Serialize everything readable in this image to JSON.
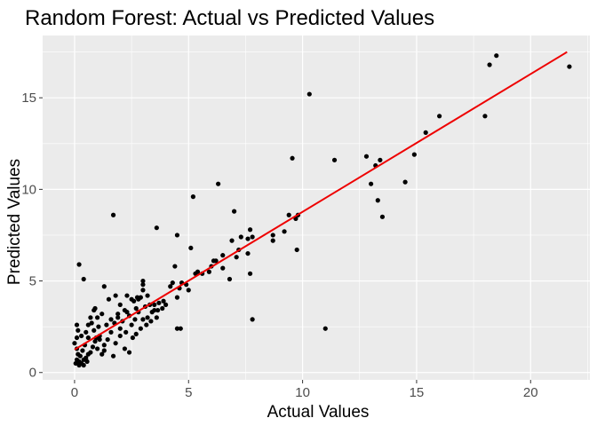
{
  "chart_data": {
    "type": "scatter",
    "title": "Random Forest: Actual vs Predicted Values",
    "xlabel": "Actual Values",
    "ylabel": "Predicted Values",
    "xlim": [
      -1.4,
      22.6
    ],
    "ylim": [
      -0.4,
      18.4
    ],
    "x_ticks": [
      0,
      5,
      10,
      15,
      20
    ],
    "x_tick_labels": [
      "0",
      "5",
      "10",
      "15",
      "20"
    ],
    "y_ticks": [
      0,
      5,
      10,
      15
    ],
    "y_tick_labels": [
      "0",
      "5",
      "10",
      "15"
    ],
    "grid": true,
    "colors": {
      "panel": "#ebebeb",
      "grid_major": "#ffffff",
      "points": "#000000",
      "fit_line": "#ee0000"
    },
    "fit_line": {
      "x": [
        0,
        21.6
      ],
      "y": [
        1.25,
        17.5
      ]
    },
    "points": [
      [
        0.05,
        0.5
      ],
      [
        0.1,
        0.7
      ],
      [
        0.15,
        1.0
      ],
      [
        0.2,
        0.6
      ],
      [
        0.1,
        1.3
      ],
      [
        0.0,
        1.6
      ],
      [
        0.1,
        1.9
      ],
      [
        0.15,
        2.3
      ],
      [
        0.1,
        2.6
      ],
      [
        0.2,
        0.4
      ],
      [
        0.25,
        0.9
      ],
      [
        0.3,
        0.5
      ],
      [
        0.35,
        1.2
      ],
      [
        0.4,
        0.4
      ],
      [
        0.5,
        0.8
      ],
      [
        0.6,
        1.0
      ],
      [
        0.7,
        1.1
      ],
      [
        0.55,
        0.6
      ],
      [
        0.3,
        2.0
      ],
      [
        0.45,
        1.5
      ],
      [
        0.5,
        2.2
      ],
      [
        0.6,
        2.6
      ],
      [
        0.7,
        3.0
      ],
      [
        0.8,
        1.4
      ],
      [
        0.9,
        1.7
      ],
      [
        1.0,
        1.3
      ],
      [
        1.1,
        2.0
      ],
      [
        0.85,
        3.4
      ],
      [
        0.9,
        3.5
      ],
      [
        0.85,
        2.3
      ],
      [
        0.95,
        1.9
      ],
      [
        1.05,
        2.5
      ],
      [
        1.2,
        1.0
      ],
      [
        1.3,
        1.5
      ],
      [
        1.4,
        2.6
      ],
      [
        1.45,
        1.8
      ],
      [
        1.5,
        4.0
      ],
      [
        1.6,
        2.2
      ],
      [
        1.7,
        0.9
      ],
      [
        1.75,
        2.7
      ],
      [
        1.8,
        1.6
      ],
      [
        1.9,
        3.0
      ],
      [
        2.0,
        2.4
      ],
      [
        2.0,
        2.0
      ],
      [
        2.1,
        2.8
      ],
      [
        2.2,
        1.3
      ],
      [
        2.25,
        2.2
      ],
      [
        2.3,
        3.3
      ],
      [
        2.4,
        1.1
      ],
      [
        2.5,
        2.6
      ],
      [
        2.55,
        1.9
      ],
      [
        2.6,
        3.9
      ],
      [
        2.65,
        2.9
      ],
      [
        2.7,
        2.1
      ],
      [
        2.75,
        4.1
      ],
      [
        2.8,
        3.3
      ],
      [
        2.9,
        2.4
      ],
      [
        2.9,
        4.1
      ],
      [
        3.0,
        2.9
      ],
      [
        3.0,
        4.5
      ],
      [
        3.1,
        3.6
      ],
      [
        3.15,
        2.6
      ],
      [
        3.2,
        3.0
      ],
      [
        3.3,
        3.7
      ],
      [
        3.35,
        2.8
      ],
      [
        3.4,
        3.3
      ],
      [
        3.5,
        3.7
      ],
      [
        3.6,
        3.0
      ],
      [
        3.65,
        3.4
      ],
      [
        3.7,
        3.8
      ],
      [
        3.85,
        3.5
      ],
      [
        3.0,
        5.0
      ],
      [
        1.3,
        4.7
      ],
      [
        1.8,
        4.2
      ],
      [
        2.3,
        4.2
      ],
      [
        2.5,
        4.0
      ],
      [
        3.0,
        4.8
      ],
      [
        3.2,
        4.2
      ],
      [
        3.5,
        3.4
      ],
      [
        3.6,
        7.9
      ],
      [
        1.9,
        3.2
      ],
      [
        2.2,
        3.4
      ],
      [
        2.4,
        3.1
      ],
      [
        2.0,
        3.7
      ],
      [
        2.7,
        3.5
      ],
      [
        2.8,
        4.0
      ],
      [
        1.2,
        3.2
      ],
      [
        1.6,
        2.9
      ],
      [
        1.0,
        3.0
      ],
      [
        0.75,
        2.7
      ],
      [
        4.0,
        3.7
      ],
      [
        4.3,
        4.9
      ],
      [
        4.5,
        4.1
      ],
      [
        4.6,
        4.6
      ],
      [
        4.7,
        4.9
      ],
      [
        4.5,
        2.4
      ],
      [
        4.65,
        2.4
      ],
      [
        5.0,
        4.5
      ],
      [
        5.1,
        6.8
      ],
      [
        5.3,
        5.4
      ],
      [
        5.6,
        5.4
      ],
      [
        5.9,
        5.5
      ],
      [
        6.0,
        5.8
      ],
      [
        6.1,
        6.1
      ],
      [
        6.3,
        10.3
      ],
      [
        6.5,
        6.4
      ],
      [
        6.5,
        5.7
      ],
      [
        6.8,
        5.1
      ],
      [
        6.9,
        7.2
      ],
      [
        7.0,
        8.8
      ],
      [
        7.1,
        6.3
      ],
      [
        7.3,
        7.4
      ],
      [
        7.6,
        7.3
      ],
      [
        7.6,
        6.5
      ],
      [
        7.7,
        7.8
      ],
      [
        7.8,
        7.4
      ],
      [
        7.7,
        5.4
      ],
      [
        7.8,
        2.9
      ],
      [
        7.2,
        6.7
      ],
      [
        5.2,
        9.6
      ],
      [
        4.5,
        7.5
      ],
      [
        6.2,
        6.1
      ],
      [
        8.7,
        7.2
      ],
      [
        8.7,
        7.5
      ],
      [
        9.2,
        7.7
      ],
      [
        9.4,
        8.6
      ],
      [
        9.55,
        11.7
      ],
      [
        9.7,
        8.4
      ],
      [
        9.75,
        6.7
      ],
      [
        9.8,
        8.6
      ],
      [
        10.3,
        15.2
      ],
      [
        11.0,
        2.4
      ],
      [
        11.4,
        11.6
      ],
      [
        12.8,
        11.8
      ],
      [
        13.0,
        10.3
      ],
      [
        13.2,
        11.3
      ],
      [
        13.3,
        9.4
      ],
      [
        13.4,
        11.6
      ],
      [
        13.5,
        8.5
      ],
      [
        14.5,
        10.4
      ],
      [
        14.9,
        11.9
      ],
      [
        15.4,
        13.1
      ],
      [
        16.0,
        14.0
      ],
      [
        18.0,
        14.0
      ],
      [
        18.2,
        16.8
      ],
      [
        18.5,
        17.3
      ],
      [
        21.7,
        16.7
      ],
      [
        0.4,
        5.1
      ],
      [
        0.2,
        5.9
      ],
      [
        1.7,
        8.6
      ],
      [
        3.9,
        3.9
      ],
      [
        4.2,
        4.7
      ],
      [
        4.4,
        5.8
      ],
      [
        4.9,
        4.8
      ],
      [
        5.4,
        5.5
      ],
      [
        0.4,
        0.7
      ],
      [
        0.6,
        1.9
      ],
      [
        1.1,
        1.8
      ],
      [
        1.3,
        1.2
      ]
    ]
  }
}
